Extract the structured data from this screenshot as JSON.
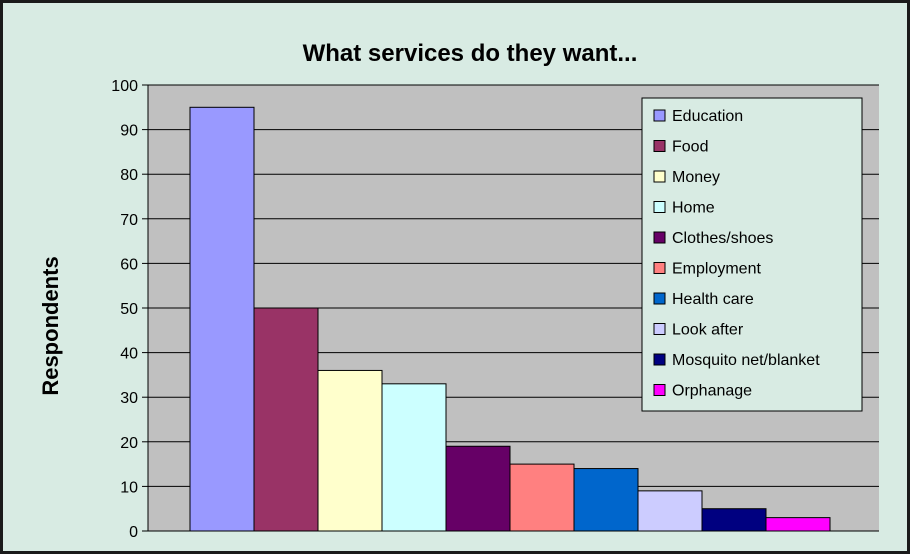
{
  "chart_data": {
    "type": "bar",
    "title": "What services do they want...",
    "xlabel": "",
    "ylabel": "Respondents",
    "ylim": [
      0,
      100
    ],
    "yticks": [
      "0",
      "10",
      "20",
      "30",
      "40",
      "50",
      "60",
      "70",
      "80",
      "90",
      "100"
    ],
    "grid": true,
    "legend_position": "top-right",
    "background_color": "#d8ebe3",
    "plot_background_color": "#c0c0c0",
    "series": [
      {
        "name": "Education",
        "value": 95,
        "color": "#9999ff"
      },
      {
        "name": "Food",
        "value": 50,
        "color": "#993366"
      },
      {
        "name": "Money",
        "value": 36,
        "color": "#ffffcc"
      },
      {
        "name": "Home",
        "value": 33,
        "color": "#ccffff"
      },
      {
        "name": "Clothes/shoes",
        "value": 19,
        "color": "#660066"
      },
      {
        "name": "Employment",
        "value": 15,
        "color": "#ff8080"
      },
      {
        "name": "Health care",
        "value": 14,
        "color": "#0066cc"
      },
      {
        "name": "Look after",
        "value": 9,
        "color": "#ccccff"
      },
      {
        "name": "Mosquito net/blanket",
        "value": 5,
        "color": "#000080"
      },
      {
        "name": "Orphanage",
        "value": 3,
        "color": "#ff00ff"
      }
    ]
  }
}
